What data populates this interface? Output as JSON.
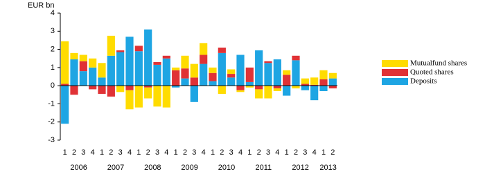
{
  "chart_data": {
    "type": "stacked_bar",
    "y_label": "EUR bn",
    "categories": [
      "1",
      "2",
      "3",
      "4",
      "1",
      "2",
      "3",
      "4",
      "1",
      "2",
      "3",
      "4",
      "1",
      "2",
      "3",
      "4",
      "1",
      "2",
      "3",
      "4",
      "1",
      "2",
      "3",
      "4",
      "1",
      "2",
      "3",
      "4",
      "1",
      "2"
    ],
    "groups": [
      "2006",
      "2007",
      "2008",
      "2009",
      "2010",
      "2011",
      "2012",
      "2013"
    ],
    "series": [
      {
        "name": "Deposits",
        "color": "#1ea5e3",
        "values": [
          -2.1,
          1.45,
          0.8,
          1.0,
          0.45,
          1.65,
          1.85,
          2.7,
          1.9,
          3.1,
          1.15,
          1.5,
          -0.1,
          0.4,
          -0.9,
          1.2,
          0.25,
          1.8,
          0.45,
          1.7,
          0.2,
          1.95,
          1.25,
          1.45,
          -0.55,
          1.4,
          -0.25,
          -0.8,
          -0.3,
          0.4
        ]
      },
      {
        "name": "Quoted shares",
        "color": "#e03236",
        "values": [
          0.1,
          -0.5,
          0.55,
          -0.2,
          -0.45,
          -0.6,
          0.1,
          -0.25,
          0.3,
          -0.1,
          0.15,
          0.15,
          0.85,
          0.55,
          0.45,
          0.5,
          0.45,
          0.3,
          0.2,
          -0.25,
          0.8,
          -0.2,
          0.1,
          -0.15,
          0.6,
          0.25,
          0.1,
          0.05,
          0.35,
          -0.15
        ]
      },
      {
        "name": "Mutualfund shares",
        "color": "#ffdc00",
        "values": [
          2.35,
          0.35,
          0.35,
          0.5,
          0.8,
          1.1,
          -0.35,
          -1.05,
          -1.2,
          -0.6,
          -1.15,
          -1.2,
          0.15,
          0.7,
          0.75,
          0.65,
          0.3,
          -0.45,
          0.25,
          -0.1,
          -0.1,
          -0.5,
          -0.7,
          -0.15,
          0.25,
          -0.15,
          0.3,
          0.4,
          0.5,
          0.3
        ]
      }
    ],
    "ylim": [
      -3,
      4
    ],
    "yticks": [
      -3,
      -2,
      -1,
      0,
      1,
      2,
      3,
      4
    ],
    "legend": "right"
  }
}
